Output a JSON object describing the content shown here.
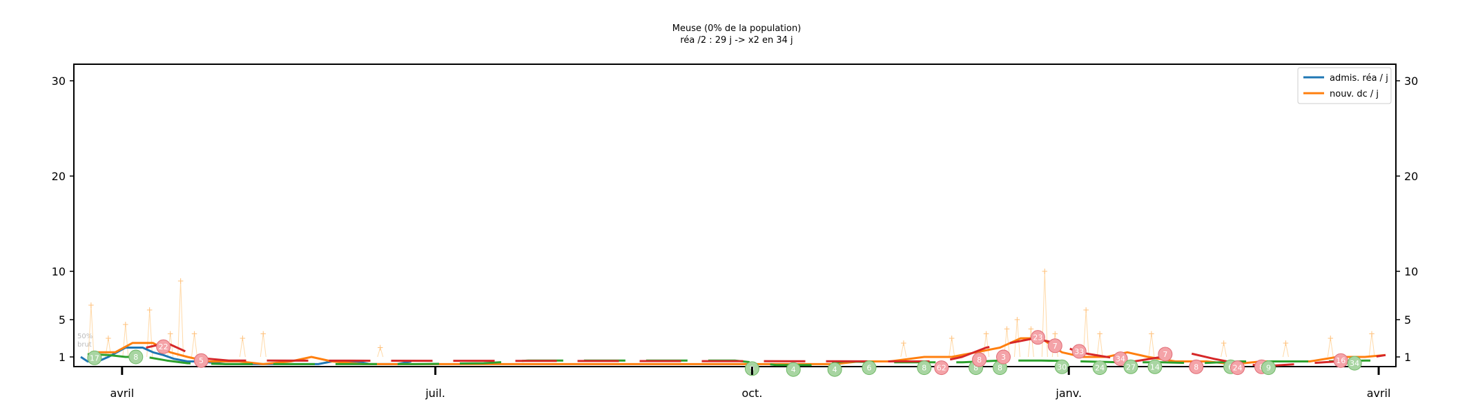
{
  "chart_data": {
    "type": "line",
    "title": "Meuse (0% de la population)",
    "subtitle": "réa /2 : 29 j -> x2 en 34 j",
    "xlabel": "",
    "ylabel": "",
    "y_scale": "symlog",
    "ylim": [
      0,
      32
    ],
    "y_ticks": [
      1,
      5,
      10,
      20,
      30
    ],
    "y_tick_labels": [
      "1",
      "5",
      "10",
      "20",
      "30"
    ],
    "x_range": [
      "2020-03-18",
      "2021-04-06"
    ],
    "x_ticks": [
      {
        "date": "2020-04-01",
        "label": "avril"
      },
      {
        "date": "2020-07-01",
        "label": "juil."
      },
      {
        "date": "2020-10-01",
        "label": "oct."
      },
      {
        "date": "2021-01-01",
        "label": "janv."
      },
      {
        "date": "2021-04-01",
        "label": "avril"
      }
    ],
    "grid": false,
    "legend_position": "top-right",
    "percent_labels": [
      "50%",
      "brut"
    ],
    "series": [
      {
        "name": "admis. réa / j",
        "color": "#1f77b4",
        "style": "solid",
        "points": [
          [
            "2020-03-20",
            1.0
          ],
          [
            "2020-03-22",
            0.5
          ],
          [
            "2020-03-25",
            0.5
          ],
          [
            "2020-03-28",
            1.0
          ],
          [
            "2020-04-02",
            2.0
          ],
          [
            "2020-04-07",
            2.0
          ],
          [
            "2020-04-10",
            1.5
          ],
          [
            "2020-04-13",
            1.2
          ],
          [
            "2020-04-16",
            0.8
          ],
          [
            "2020-04-20",
            0.5
          ],
          [
            "2020-04-24",
            0.5
          ],
          [
            "2020-05-01",
            0.2
          ],
          [
            "2020-05-15",
            0.2
          ],
          [
            "2020-05-28",
            0.2
          ],
          [
            "2020-06-01",
            0.5
          ],
          [
            "2020-06-08",
            0.5
          ],
          [
            "2020-06-12",
            0.2
          ],
          [
            "2020-06-20",
            0.2
          ],
          [
            "2020-06-24",
            0.5
          ]
        ]
      },
      {
        "name": "nouv. dc / j",
        "color": "#ff7f0e",
        "style": "solid",
        "points": [
          [
            "2020-03-23",
            1.5
          ],
          [
            "2020-03-30",
            1.5
          ],
          [
            "2020-04-04",
            2.5
          ],
          [
            "2020-04-10",
            2.5
          ],
          [
            "2020-04-15",
            1.5
          ],
          [
            "2020-04-20",
            1.0
          ],
          [
            "2020-04-26",
            0.5
          ],
          [
            "2020-05-05",
            0.5
          ],
          [
            "2020-05-12",
            0.2
          ],
          [
            "2020-05-20",
            0.5
          ],
          [
            "2020-05-26",
            1.0
          ],
          [
            "2020-06-01",
            0.5
          ],
          [
            "2020-06-10",
            0.2
          ],
          [
            "2020-06-17",
            0.2
          ],
          [
            "2020-06-24",
            0.2
          ],
          [
            "2020-10-25",
            0.2
          ],
          [
            "2020-11-01",
            0.5
          ],
          [
            "2020-11-10",
            0.5
          ],
          [
            "2020-11-20",
            1.0
          ],
          [
            "2020-11-28",
            1.0
          ],
          [
            "2020-12-05",
            1.5
          ],
          [
            "2020-12-12",
            2.0
          ],
          [
            "2020-12-18",
            3.0
          ],
          [
            "2020-12-24",
            3.0
          ],
          [
            "2020-12-30",
            1.5
          ],
          [
            "2021-01-05",
            1.0
          ],
          [
            "2021-01-12",
            1.0
          ],
          [
            "2021-01-18",
            1.5
          ],
          [
            "2021-01-24",
            1.0
          ],
          [
            "2021-02-01",
            0.5
          ],
          [
            "2021-02-10",
            0.5
          ],
          [
            "2021-02-18",
            0.2
          ],
          [
            "2021-02-26",
            0.5
          ],
          [
            "2021-03-05",
            0.5
          ],
          [
            "2021-03-12",
            0.5
          ],
          [
            "2021-03-20",
            1.0
          ],
          [
            "2021-03-28",
            1.0
          ],
          [
            "2021-04-03",
            1.2
          ]
        ]
      },
      {
        "color": "#2ca02c",
        "style": "dashed",
        "points": [
          [
            "2020-03-22",
            1.3
          ],
          [
            "2020-03-28",
            1.2
          ],
          [
            "2020-04-02",
            1.0
          ],
          [
            "2020-04-08",
            1.0
          ],
          [
            "2020-04-14",
            0.6
          ],
          [
            "2020-04-20",
            0.3
          ],
          [
            "2020-05-01",
            0.2
          ],
          [
            "2020-05-20",
            0.2
          ],
          [
            "2020-06-10",
            0.2
          ],
          [
            "2020-06-25",
            0.2
          ],
          [
            "2020-07-15",
            0.3
          ],
          [
            "2020-07-28",
            0.6
          ],
          [
            "2020-08-08",
            0.6
          ],
          [
            "2020-08-20",
            0.6
          ],
          [
            "2020-09-01",
            0.6
          ],
          [
            "2020-09-14",
            0.6
          ],
          [
            "2020-09-26",
            0.6
          ],
          [
            "2020-10-08",
            0.1
          ],
          [
            "2020-10-18",
            0.1
          ],
          [
            "2020-10-28",
            0.5
          ],
          [
            "2020-11-08",
            0.4
          ],
          [
            "2020-11-20",
            0.4
          ],
          [
            "2020-12-01",
            0.4
          ],
          [
            "2020-12-12",
            0.6
          ],
          [
            "2020-12-24",
            0.6
          ],
          [
            "2021-01-05",
            0.5
          ],
          [
            "2021-01-16",
            0.4
          ],
          [
            "2021-01-28",
            0.4
          ],
          [
            "2021-02-08",
            0.3
          ],
          [
            "2021-02-20",
            0.5
          ],
          [
            "2021-03-04",
            0.5
          ],
          [
            "2021-03-16",
            0.5
          ],
          [
            "2021-03-28",
            0.6
          ],
          [
            "2021-04-03",
            0.6
          ]
        ]
      },
      {
        "color": "#d62728",
        "style": "dashed",
        "points": [
          [
            "2020-04-08",
            2.0
          ],
          [
            "2020-04-14",
            2.5
          ],
          [
            "2020-04-20",
            1.5
          ],
          [
            "2020-04-26",
            0.8
          ],
          [
            "2020-05-02",
            0.6
          ],
          [
            "2020-11-25",
            0.5
          ],
          [
            "2020-12-01",
            1.0
          ],
          [
            "2020-12-08",
            2.0
          ],
          [
            "2020-12-15",
            2.5
          ],
          [
            "2020-12-22",
            3.0
          ],
          [
            "2020-12-28",
            2.5
          ],
          [
            "2021-01-04",
            1.5
          ],
          [
            "2021-01-12",
            1.0
          ],
          [
            "2021-01-20",
            0.5
          ],
          [
            "2021-01-28",
            1.0
          ],
          [
            "2021-02-04",
            1.5
          ],
          [
            "2021-02-12",
            0.8
          ],
          [
            "2021-02-20",
            0.2
          ],
          [
            "2021-02-28",
            0.0
          ],
          [
            "2021-03-08",
            0.2
          ],
          [
            "2021-03-16",
            0.4
          ],
          [
            "2021-03-24",
            0.6
          ],
          [
            "2021-04-03",
            1.2
          ]
        ]
      }
    ],
    "spikes": [
      [
        "2020-03-23",
        6.5
      ],
      [
        "2020-03-28",
        3.0
      ],
      [
        "2020-04-02",
        4.5
      ],
      [
        "2020-04-09",
        6.0
      ],
      [
        "2020-04-15",
        3.5
      ],
      [
        "2020-04-18",
        9.0
      ],
      [
        "2020-04-22",
        3.5
      ],
      [
        "2020-05-06",
        3.0
      ],
      [
        "2020-05-12",
        3.5
      ],
      [
        "2020-06-15",
        2.0
      ],
      [
        "2020-11-14",
        2.5
      ],
      [
        "2020-11-28",
        3.0
      ],
      [
        "2020-12-08",
        3.5
      ],
      [
        "2020-12-14",
        4.0
      ],
      [
        "2020-12-17",
        5.0
      ],
      [
        "2020-12-21",
        4.0
      ],
      [
        "2020-12-25",
        10.0
      ],
      [
        "2020-12-28",
        3.5
      ],
      [
        "2021-01-06",
        6.0
      ],
      [
        "2021-01-10",
        3.5
      ],
      [
        "2021-01-25",
        3.5
      ],
      [
        "2021-02-15",
        2.5
      ],
      [
        "2021-03-05",
        2.5
      ],
      [
        "2021-03-18",
        3.0
      ],
      [
        "2021-03-30",
        3.5
      ]
    ],
    "bubbles": [
      {
        "date": "2020-03-24",
        "y": 0.9,
        "label": "17",
        "color": "green"
      },
      {
        "date": "2020-04-05",
        "y": 1.0,
        "label": "8",
        "color": "green"
      },
      {
        "date": "2020-04-13",
        "y": 2.1,
        "label": "22",
        "color": "red"
      },
      {
        "date": "2020-04-24",
        "y": 0.6,
        "label": "5",
        "color": "red"
      },
      {
        "date": "2020-10-01",
        "y": -0.3,
        "label": "9",
        "color": "green"
      },
      {
        "date": "2020-10-13",
        "y": -0.4,
        "label": "4",
        "color": "green"
      },
      {
        "date": "2020-10-25",
        "y": -0.4,
        "label": "4",
        "color": "green"
      },
      {
        "date": "2020-11-04",
        "y": -0.2,
        "label": "6",
        "color": "green"
      },
      {
        "date": "2020-11-20",
        "y": -0.2,
        "label": "8",
        "color": "green"
      },
      {
        "date": "2020-11-25",
        "y": -0.2,
        "label": "62",
        "color": "red"
      },
      {
        "date": "2020-12-05",
        "y": -0.2,
        "label": "8",
        "color": "green"
      },
      {
        "date": "2020-12-06",
        "y": 0.7,
        "label": "8",
        "color": "red"
      },
      {
        "date": "2020-12-12",
        "y": -0.2,
        "label": "8",
        "color": "green"
      },
      {
        "date": "2020-12-13",
        "y": 1.0,
        "label": "3",
        "color": "red"
      },
      {
        "date": "2020-12-23",
        "y": 3.1,
        "label": "23",
        "color": "red"
      },
      {
        "date": "2020-12-28",
        "y": 2.2,
        "label": "7",
        "color": "red"
      },
      {
        "date": "2020-12-30",
        "y": -0.1,
        "label": "30",
        "color": "green"
      },
      {
        "date": "2021-01-04",
        "y": 1.6,
        "label": "33",
        "color": "red"
      },
      {
        "date": "2021-01-10",
        "y": -0.2,
        "label": "24",
        "color": "green"
      },
      {
        "date": "2021-01-16",
        "y": 0.8,
        "label": "34",
        "color": "red"
      },
      {
        "date": "2021-01-19",
        "y": -0.1,
        "label": "27",
        "color": "green"
      },
      {
        "date": "2021-01-26",
        "y": -0.1,
        "label": "14",
        "color": "green"
      },
      {
        "date": "2021-01-29",
        "y": 1.3,
        "label": "7",
        "color": "red"
      },
      {
        "date": "2021-02-07",
        "y": -0.1,
        "label": "8",
        "color": "red"
      },
      {
        "date": "2021-02-17",
        "y": -0.1,
        "label": "6",
        "color": "green"
      },
      {
        "date": "2021-02-19",
        "y": -0.2,
        "label": "24",
        "color": "red"
      },
      {
        "date": "2021-02-26",
        "y": -0.1,
        "label": "8",
        "color": "red"
      },
      {
        "date": "2021-02-28",
        "y": -0.2,
        "label": "9",
        "color": "green"
      },
      {
        "date": "2021-03-21",
        "y": 0.6,
        "label": "16",
        "color": "red"
      },
      {
        "date": "2021-03-25",
        "y": 0.3,
        "label": "34",
        "color": "green"
      }
    ]
  }
}
